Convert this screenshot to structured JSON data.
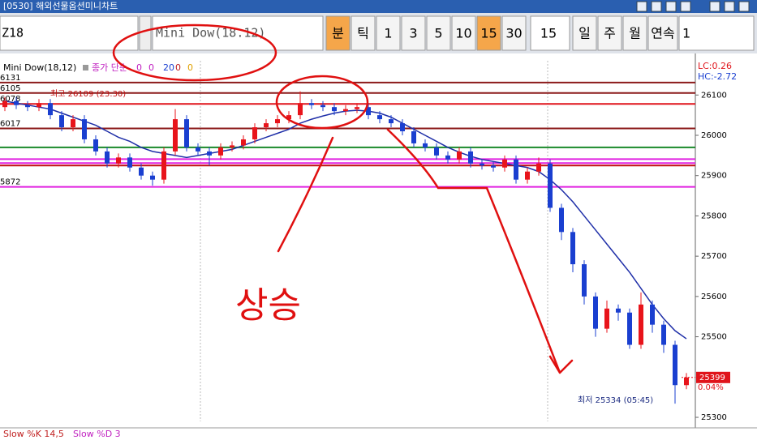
{
  "window": {
    "title": "[0530] 해외선물옵션미니차트"
  },
  "toolbar": {
    "code": "Z18",
    "product": "Mini Dow(18.12)",
    "periods": [
      "분",
      "틱",
      "1",
      "3",
      "5",
      "10",
      "15",
      "30"
    ],
    "interval": "15",
    "ranges": [
      "일",
      "주",
      "월",
      "연속"
    ],
    "count": "1"
  },
  "chart_data": {
    "type": "candlestick",
    "title": "Mini Dow(18,12)",
    "indicator": "종가 단순",
    "params": [
      0,
      0,
      20,
      0,
      0
    ],
    "ylim": [
      25290,
      26185
    ],
    "yticks": [
      25300,
      25500,
      25600,
      25700,
      25800,
      25900,
      26000,
      26100
    ],
    "up_color": "#e8141b",
    "down_color": "#1a3fd0",
    "candles": [
      [
        26070,
        26095,
        26060,
        26085
      ],
      [
        26085,
        26095,
        26065,
        26075
      ],
      [
        26075,
        26085,
        26060,
        26070
      ],
      [
        26070,
        26090,
        26060,
        26080
      ],
      [
        26080,
        26090,
        26040,
        26050
      ],
      [
        26050,
        26060,
        26010,
        26020
      ],
      [
        26020,
        26050,
        26010,
        26040
      ],
      [
        26040,
        26050,
        25980,
        25990
      ],
      [
        25990,
        26000,
        25950,
        25960
      ],
      [
        25960,
        25970,
        25920,
        25930
      ],
      [
        25930,
        25955,
        25920,
        25945
      ],
      [
        25945,
        25955,
        25910,
        25920
      ],
      [
        25920,
        25930,
        25890,
        25900
      ],
      [
        25900,
        25910,
        25875,
        25890
      ],
      [
        25890,
        25970,
        25880,
        25960
      ],
      [
        25960,
        26065,
        25950,
        26040
      ],
      [
        26040,
        26050,
        25960,
        25970
      ],
      [
        25970,
        25980,
        25950,
        25960
      ],
      [
        25960,
        25970,
        25925,
        25950
      ],
      [
        25950,
        25980,
        25940,
        25970
      ],
      [
        25970,
        25985,
        25960,
        25975
      ],
      [
        25975,
        26000,
        25965,
        25990
      ],
      [
        25990,
        26030,
        25980,
        26020
      ],
      [
        26020,
        26040,
        26010,
        26030
      ],
      [
        26030,
        26050,
        26020,
        26040
      ],
      [
        26040,
        26060,
        26030,
        26050
      ],
      [
        26050,
        26109,
        26040,
        26080
      ],
      [
        26080,
        26090,
        26065,
        26075
      ],
      [
        26075,
        26085,
        26060,
        26070
      ],
      [
        26070,
        26080,
        26050,
        26060
      ],
      [
        26060,
        26075,
        26050,
        26065
      ],
      [
        26065,
        26080,
        26055,
        26070
      ],
      [
        26070,
        26080,
        26040,
        26050
      ],
      [
        26050,
        26060,
        26030,
        26040
      ],
      [
        26040,
        26050,
        26020,
        26030
      ],
      [
        26030,
        26040,
        26000,
        26010
      ],
      [
        26010,
        26020,
        25970,
        25980
      ],
      [
        25980,
        25990,
        25960,
        25970
      ],
      [
        25970,
        25980,
        25940,
        25950
      ],
      [
        25950,
        25960,
        25930,
        25940
      ],
      [
        25940,
        25970,
        25930,
        25960
      ],
      [
        25960,
        25970,
        25920,
        25930
      ],
      [
        25930,
        25940,
        25915,
        25925
      ],
      [
        25925,
        25935,
        25910,
        25920
      ],
      [
        25920,
        25950,
        25910,
        25940
      ],
      [
        25940,
        25950,
        25880,
        25890
      ],
      [
        25890,
        25920,
        25880,
        25910
      ],
      [
        25910,
        25945,
        25900,
        25930
      ],
      [
        25930,
        25940,
        25810,
        25820
      ],
      [
        25820,
        25830,
        25740,
        25760
      ],
      [
        25760,
        25770,
        25660,
        25680
      ],
      [
        25680,
        25690,
        25580,
        25600
      ],
      [
        25600,
        25610,
        25500,
        25520
      ],
      [
        25520,
        25590,
        25510,
        25570
      ],
      [
        25570,
        25580,
        25540,
        25560
      ],
      [
        25560,
        25570,
        25470,
        25480
      ],
      [
        25480,
        25610,
        25470,
        25580
      ],
      [
        25580,
        25590,
        25510,
        25530
      ],
      [
        25530,
        25540,
        25460,
        25480
      ],
      [
        25480,
        25490,
        25334,
        25380
      ],
      [
        25380,
        25410,
        25370,
        25399
      ]
    ],
    "ma": {
      "color": "#1f2fa8",
      "values": [
        26085,
        26080,
        26075,
        26070,
        26065,
        26055,
        26045,
        26035,
        26025,
        26010,
        25995,
        25985,
        25970,
        25960,
        25955,
        25950,
        25945,
        25950,
        25955,
        25960,
        25965,
        25975,
        25985,
        25995,
        26005,
        26015,
        26030,
        26040,
        26048,
        26055,
        26060,
        26062,
        26060,
        26055,
        26045,
        26030,
        26015,
        26000,
        25985,
        25970,
        25958,
        25948,
        25940,
        25935,
        25930,
        25925,
        25920,
        25910,
        25890,
        25865,
        25835,
        25800,
        25765,
        25730,
        25695,
        25660,
        25620,
        25580,
        25545,
        25515,
        25495
      ]
    },
    "levels": [
      {
        "value": 26131,
        "label": "6131",
        "color": "#8b1a1a"
      },
      {
        "value": 26105,
        "label": "6105",
        "color": "#8b1a1a"
      },
      {
        "value": 26078,
        "label": "6078",
        "color": "#e0141b"
      },
      {
        "value": 26017,
        "label": "6017",
        "color": "#8b1a1a"
      },
      {
        "value": 25970,
        "color": "#1a8a2a"
      },
      {
        "value": 25941,
        "color": "#e020e0"
      },
      {
        "value": 25931,
        "color": "#e020e0"
      },
      {
        "value": 25925,
        "color": "#c01010"
      },
      {
        "value": 25872,
        "label": "5872",
        "color": "#e020e0"
      }
    ],
    "high_note": "최고 26109 (23:30)",
    "low_note": "최저 25334 (05:45)",
    "lc": "LC:0.26",
    "hc": "HC:-2.72",
    "last": 25399,
    "change": "0.04%"
  },
  "footer": [
    "Slow %K 14,5",
    "Slow %D 3"
  ],
  "handwriting": "상승"
}
